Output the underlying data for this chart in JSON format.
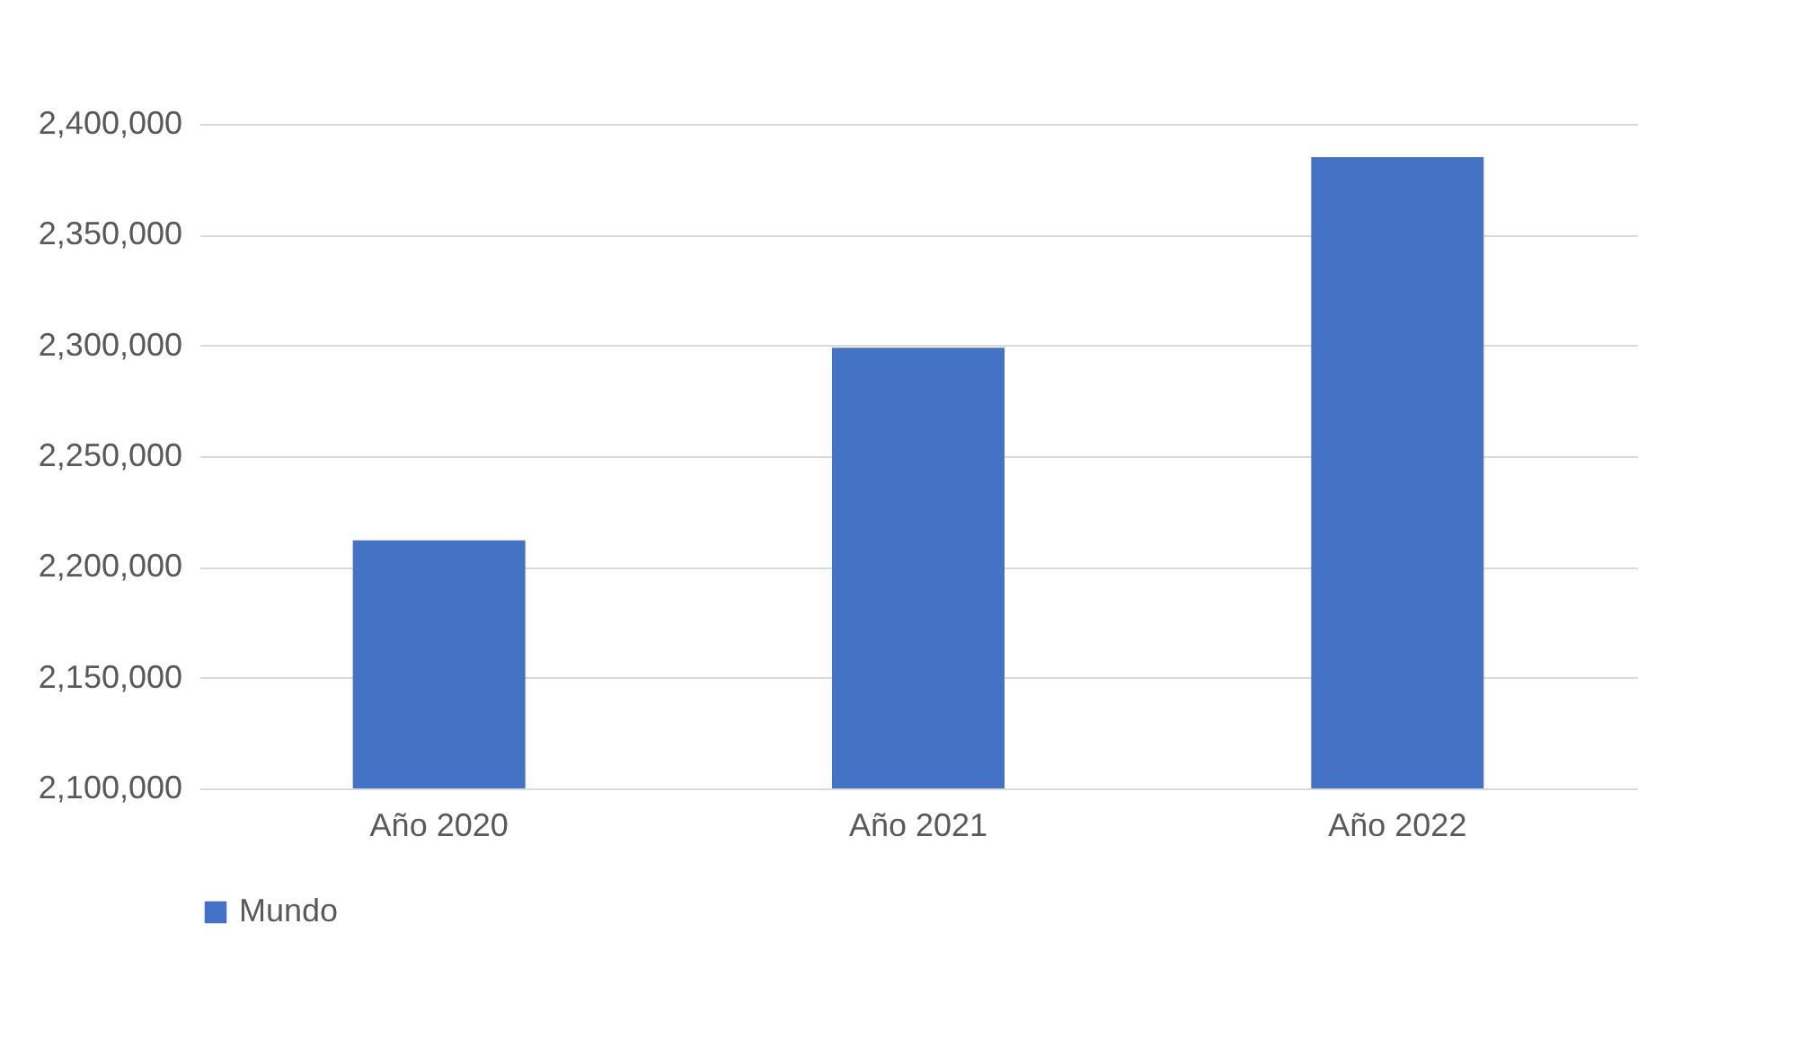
{
  "chart_data": {
    "type": "bar",
    "categories": [
      "Año 2020",
      "Año 2021",
      "Año 2022"
    ],
    "series": [
      {
        "name": "Mundo",
        "color": "#4472c4",
        "values": [
          2212000,
          2299000,
          2385000
        ]
      }
    ],
    "ylim": [
      2100000,
      2400000
    ],
    "yticks": [
      {
        "value": 2100000,
        "label": "2,100,000"
      },
      {
        "value": 2150000,
        "label": "2,150,000"
      },
      {
        "value": 2200000,
        "label": "2,200,000"
      },
      {
        "value": 2250000,
        "label": "2,250,000"
      },
      {
        "value": 2300000,
        "label": "2,300,000"
      },
      {
        "value": 2350000,
        "label": "2,350,000"
      },
      {
        "value": 2400000,
        "label": "2,400,000"
      }
    ],
    "grid": "y",
    "legend": "bottom"
  }
}
